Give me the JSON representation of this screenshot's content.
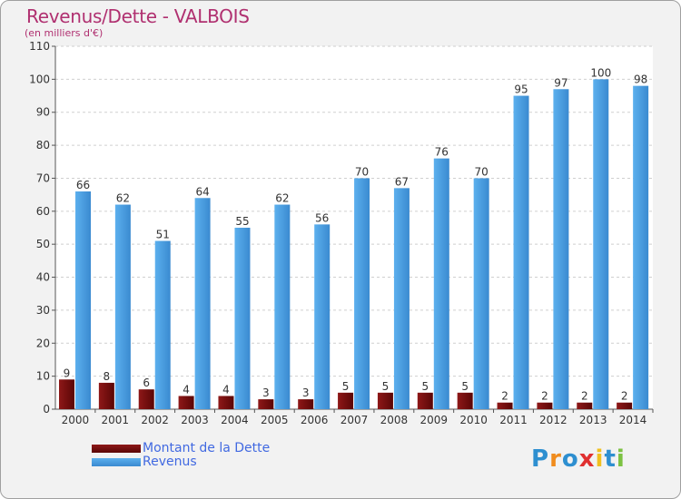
{
  "chart_data": {
    "type": "bar",
    "title": "Revenus/Dette - VALBOIS",
    "subtitle": "(en milliers d'€)",
    "categories": [
      "2000",
      "2001",
      "2002",
      "2003",
      "2004",
      "2005",
      "2006",
      "2007",
      "2008",
      "2009",
      "2010",
      "2011",
      "2012",
      "2013",
      "2014"
    ],
    "series": [
      {
        "name": "Montant de la Dette",
        "color": "#7a0a0a",
        "values": [
          9,
          8,
          6,
          4,
          4,
          3,
          3,
          5,
          5,
          5,
          5,
          2,
          2,
          2,
          2
        ]
      },
      {
        "name": "Revenus",
        "color": "#4a9fe0",
        "values": [
          66,
          62,
          51,
          64,
          55,
          62,
          56,
          70,
          67,
          76,
          70,
          95,
          97,
          100,
          98
        ]
      }
    ],
    "ylim": [
      0,
      110
    ],
    "yticks": [
      0,
      10,
      20,
      30,
      40,
      50,
      60,
      70,
      80,
      90,
      100,
      110
    ],
    "grid": true,
    "legend_position": "bottom-left"
  },
  "logo": {
    "text": "Proxiti",
    "letters": [
      {
        "char": "P",
        "color": "#2e8fd0"
      },
      {
        "char": "r",
        "color": "#f08c1e"
      },
      {
        "char": "o",
        "color": "#2e8fd0"
      },
      {
        "char": "x",
        "color": "#e03030"
      },
      {
        "char": "i",
        "color": "#f0c020"
      },
      {
        "char": "t",
        "color": "#2e8fd0"
      },
      {
        "char": "i",
        "color": "#7cc242"
      }
    ]
  }
}
